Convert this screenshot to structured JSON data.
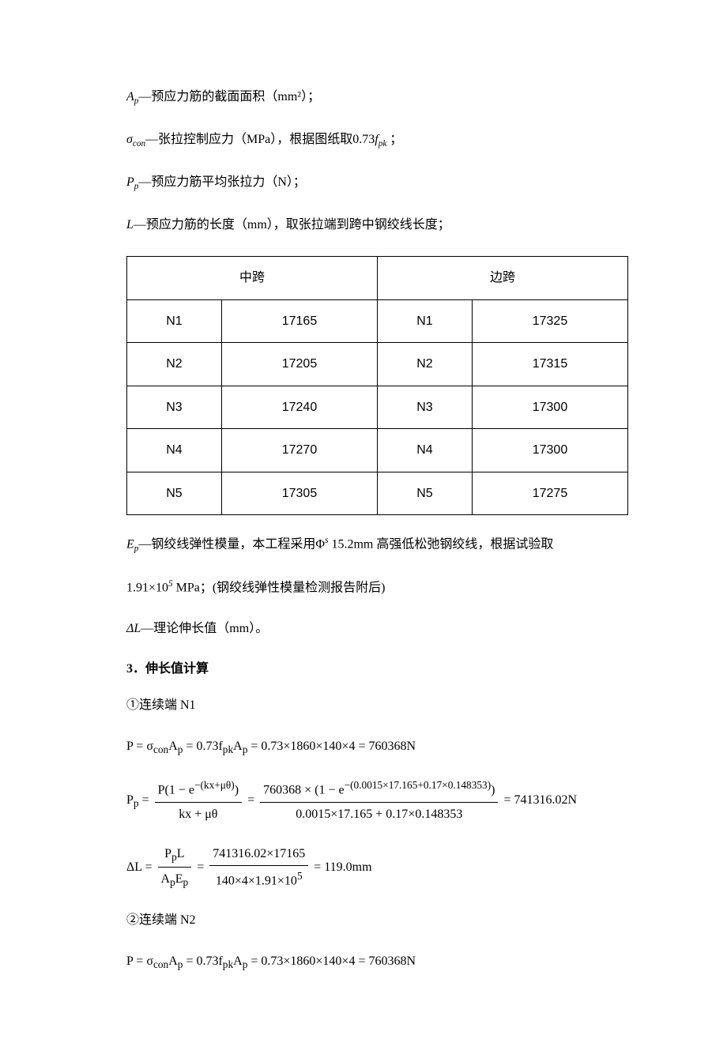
{
  "definitions": {
    "ap": {
      "var": "A",
      "sub": "p",
      "desc": "—预应力筋的截面面积（mm²）；"
    },
    "sigma_con": {
      "var": "σ",
      "sub": "con",
      "desc_pre": "—张拉控制应力（MPa），根据图纸取",
      "coef": "0.73",
      "fvar": "f",
      "fsub": "pk",
      "desc_post": " ；"
    },
    "pp": {
      "var": "P",
      "sub": "p",
      "desc": "—预应力筋平均张拉力（N）；"
    },
    "L": {
      "var": "L",
      "desc": "—预应力筋的长度（mm），取张拉端到跨中钢绞线长度；"
    },
    "ep": {
      "var": "E",
      "sub": "p",
      "desc_pre": "—钢绞线弹性模量，本工程采用",
      "phi": "Φ",
      "phisup": "s",
      "diam": " 15.2mm 高强低松弛钢绞线，根据试验取"
    },
    "ep2": {
      "val": "1.91×10",
      "exp": "5",
      "unit": " MPa；(钢绞线弹性模量检测报告附后)"
    },
    "deltaL": {
      "var": "ΔL",
      "desc": "—理论伸长值（mm）。"
    }
  },
  "table": {
    "header_mid": "中跨",
    "header_side": "边跨",
    "rows": [
      {
        "mid_label": "N1",
        "mid_val": "17165",
        "side_label": "N1",
        "side_val": "17325"
      },
      {
        "mid_label": "N2",
        "mid_val": "17205",
        "side_label": "N2",
        "side_val": "17315"
      },
      {
        "mid_label": "N3",
        "mid_val": "17240",
        "side_label": "N3",
        "side_val": "17300"
      },
      {
        "mid_label": "N4",
        "mid_val": "17270",
        "side_label": "N4",
        "side_val": "17300"
      },
      {
        "mid_label": "N5",
        "mid_val": "17305",
        "side_label": "N5",
        "side_val": "17275"
      }
    ]
  },
  "section_title": "3．伸长值计算",
  "calc1": {
    "label": "①连续端 N1",
    "eq_P": "P = σ<sub>con</sub>A<sub>p</sub> = 0.73f<sub>pk</sub>A<sub>p</sub> = 0.73×1860×140×4 = 760368N",
    "eq_Pp_prefix": "P<sub>p</sub> = ",
    "eq_Pp_frac1_num": "P(1 − e<sup>−(kx+μθ)</sup>)",
    "eq_Pp_frac1_den": "kx + μθ",
    "eq_Pp_mid": " = ",
    "eq_Pp_frac2_num": "760368 × (1 − e<sup>−(0.0015×17.165+0.17×0.148353)</sup>)",
    "eq_Pp_frac2_den": "0.0015×17.165 + 0.17×0.148353",
    "eq_Pp_result": " = 741316.02N",
    "eq_dL_prefix": "ΔL = ",
    "eq_dL_frac1_num": "P<sub>p</sub>L",
    "eq_dL_frac1_den": "A<sub>p</sub>E<sub>p</sub>",
    "eq_dL_mid": " = ",
    "eq_dL_frac2_num": "741316.02×17165",
    "eq_dL_frac2_den": "140×4×1.91×10<sup>5</sup>",
    "eq_dL_result": " = 119.0mm"
  },
  "calc2": {
    "label": "②连续端 N2",
    "eq_P": "P = σ<sub>con</sub>A<sub>p</sub> = 0.73f<sub>pk</sub>A<sub>p</sub> = 0.73×1860×140×4 = 760368N"
  }
}
